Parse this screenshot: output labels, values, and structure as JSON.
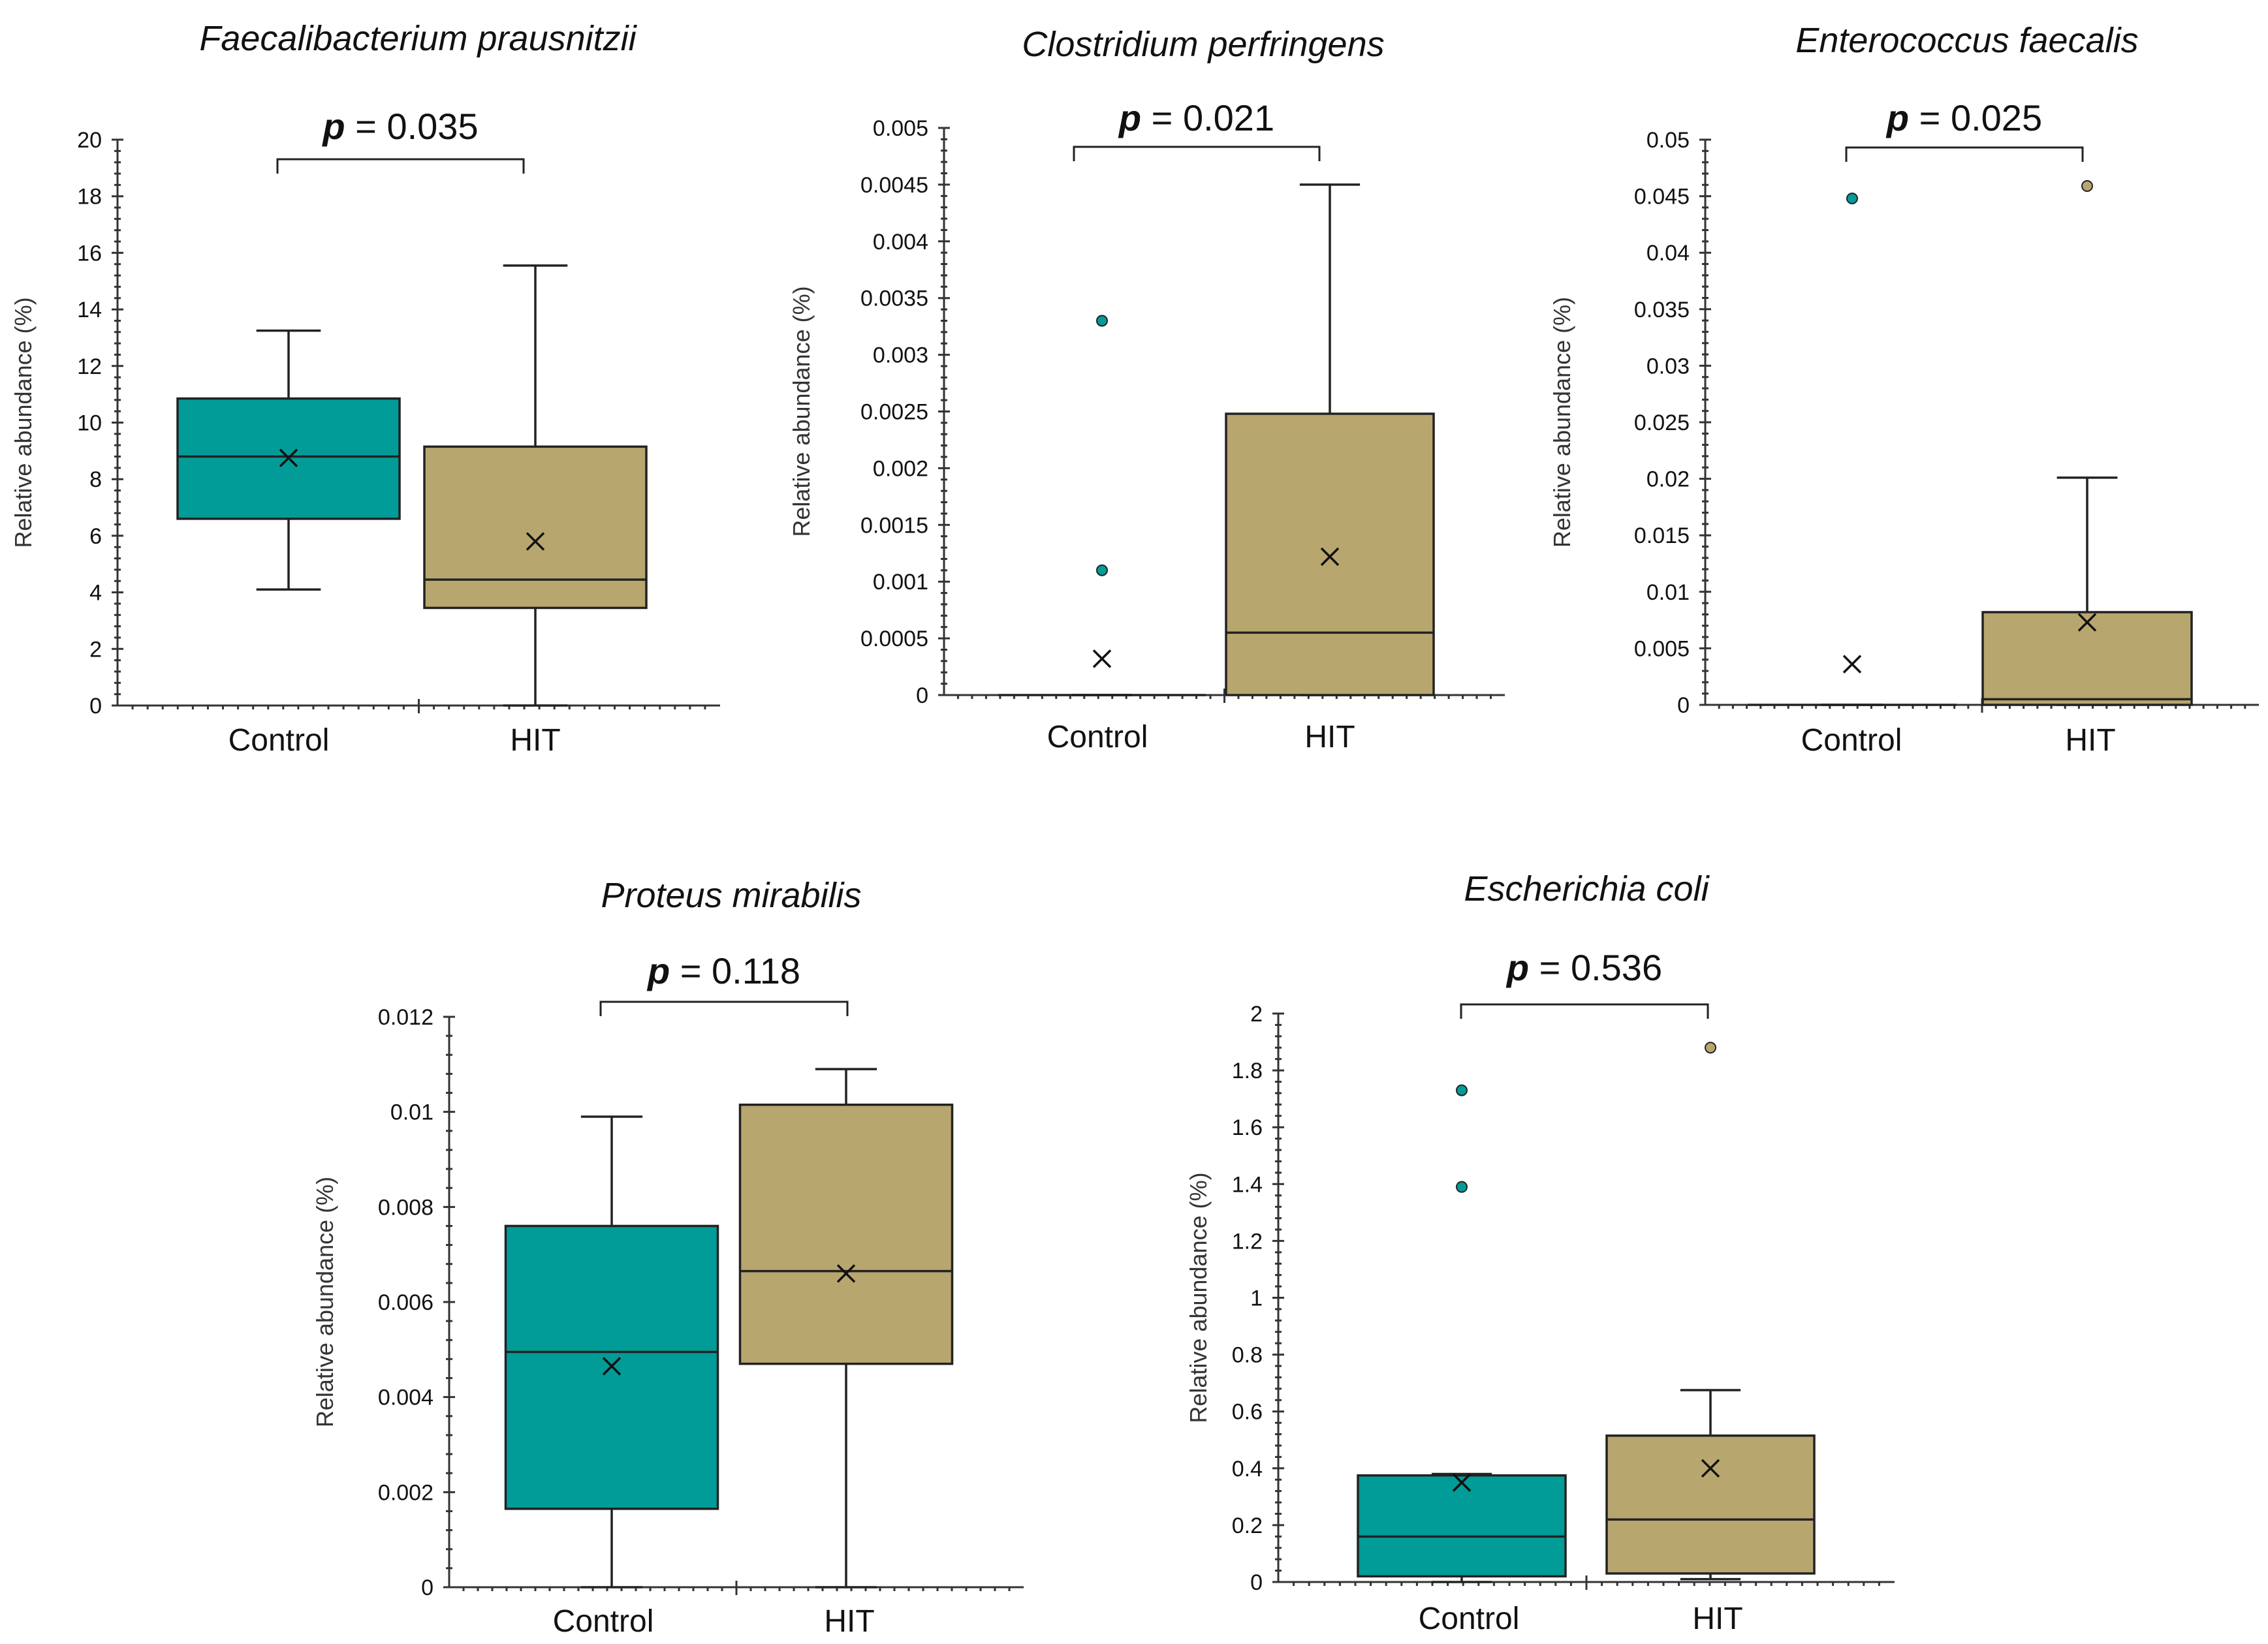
{
  "colors": {
    "control": "#029C98",
    "hit": "#B8A66F"
  },
  "chart_data": [
    {
      "type": "box",
      "title": "Faecalibacterium prausnitzii",
      "ylabel": "Relative abundance (%)",
      "ylim": [
        0,
        20
      ],
      "yticks": [
        "0",
        "2",
        "4",
        "6",
        "8",
        "10",
        "12",
        "14",
        "16",
        "18",
        "20"
      ],
      "categories": [
        "Control",
        "HIT"
      ],
      "p_prefix": "p",
      "p_text": " = 0.035",
      "series": [
        {
          "name": "Control",
          "whisker_low": 4.1,
          "q1": 6.6,
          "median": 8.8,
          "q3": 10.85,
          "whisker_high": 13.25,
          "mean": 8.75,
          "outliers": []
        },
        {
          "name": "HIT",
          "whisker_low": 0,
          "q1": 3.45,
          "median": 4.45,
          "q3": 9.15,
          "whisker_high": 15.55,
          "mean": 5.8,
          "outliers": []
        }
      ]
    },
    {
      "type": "box",
      "title": "Clostridium perfringens",
      "ylabel": "Relative abundance (%)",
      "ylim": [
        0,
        0.005
      ],
      "yticks": [
        "0",
        "0.0005",
        "0.001",
        "0.0015",
        "0.002",
        "0.0025",
        "0.003",
        "0.0035",
        "0.004",
        "0.0045",
        "0.005"
      ],
      "categories": [
        "Control",
        "HIT"
      ],
      "p_prefix": "p",
      "p_text": " = 0.021",
      "series": [
        {
          "name": "Control",
          "whisker_low": 0,
          "q1": 0,
          "median": 0,
          "q3": 0,
          "whisker_high": 0,
          "mean": 0.00032,
          "outliers": [
            0.0033,
            0.0011
          ]
        },
        {
          "name": "HIT",
          "whisker_low": 0,
          "q1": 0,
          "median": 0.00055,
          "q3": 0.00248,
          "whisker_high": 0.0045,
          "mean": 0.00122,
          "outliers": []
        }
      ]
    },
    {
      "type": "box",
      "title": "Enterococcus faecalis",
      "ylabel": "Relative abundance (%)",
      "ylim": [
        0,
        0.05
      ],
      "yticks": [
        "0",
        "0.005",
        "0.01",
        "0.015",
        "0.02",
        "0.025",
        "0.03",
        "0.035",
        "0.04",
        "0.045",
        "0.05"
      ],
      "categories": [
        "Control",
        "HIT"
      ],
      "p_prefix": "p",
      "p_text": " = 0.025",
      "series": [
        {
          "name": "Control",
          "whisker_low": 0,
          "q1": 0,
          "median": 0,
          "q3": 0,
          "whisker_high": 0,
          "mean": 0.0036,
          "outliers": [
            0.0448
          ]
        },
        {
          "name": "HIT",
          "whisker_low": 0,
          "q1": 0,
          "median": 0.0005,
          "q3": 0.0082,
          "whisker_high": 0.0201,
          "mean": 0.0073,
          "outliers": [
            0.0459
          ]
        }
      ]
    },
    {
      "type": "box",
      "title": "Proteus mirabilis",
      "ylabel": "Relative abundance (%)",
      "ylim": [
        0,
        0.012
      ],
      "yticks": [
        "0",
        "0.002",
        "0.004",
        "0.006",
        "0.008",
        "0.01",
        "0.012"
      ],
      "categories": [
        "Control",
        "HIT"
      ],
      "p_prefix": "p",
      "p_text": " = 0.118",
      "series": [
        {
          "name": "Control",
          "whisker_low": 0,
          "q1": 0.00165,
          "median": 0.00495,
          "q3": 0.0076,
          "whisker_high": 0.0099,
          "mean": 0.00465,
          "outliers": []
        },
        {
          "name": "HIT",
          "whisker_low": 0,
          "q1": 0.0047,
          "median": 0.00665,
          "q3": 0.01015,
          "whisker_high": 0.0109,
          "mean": 0.0066,
          "outliers": []
        }
      ]
    },
    {
      "type": "box",
      "title": "Escherichia coli",
      "ylabel": "Relative abundance (%)",
      "ylim": [
        0,
        2
      ],
      "yticks": [
        "0",
        "0.2",
        "0.4",
        "0.6",
        "0.8",
        "1",
        "1.2",
        "1.4",
        "1.6",
        "1.8",
        "2"
      ],
      "categories": [
        "Control",
        "HIT"
      ],
      "p_prefix": "p",
      "p_text": " = 0.536",
      "series": [
        {
          "name": "Control",
          "whisker_low": 0,
          "q1": 0.02,
          "median": 0.16,
          "q3": 0.375,
          "whisker_high": 0.38,
          "mean": 0.35,
          "outliers": [
            1.73,
            1.39
          ]
        },
        {
          "name": "HIT",
          "whisker_low": 0.01,
          "q1": 0.03,
          "median": 0.22,
          "q3": 0.515,
          "whisker_high": 0.675,
          "mean": 0.4,
          "outliers": [
            1.88
          ]
        }
      ]
    }
  ]
}
